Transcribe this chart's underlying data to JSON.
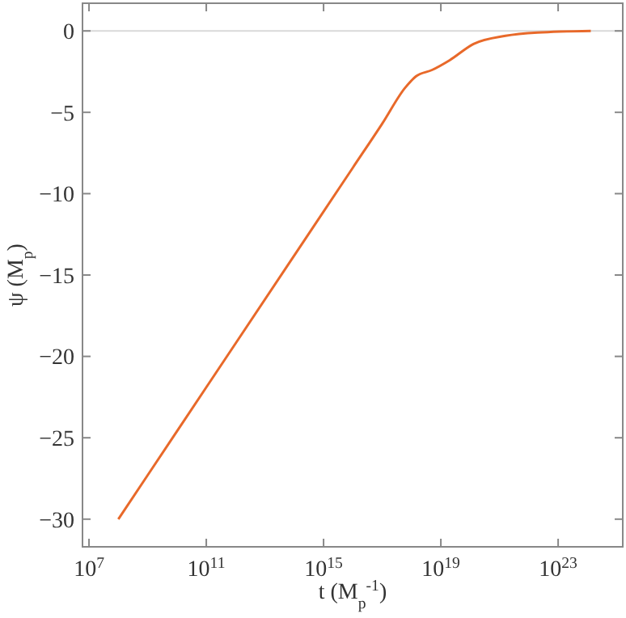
{
  "chart_data": {
    "type": "line",
    "xlabel": "t (M$_{p}$$^{-1}$)",
    "ylabel": "ψ (M$_{p}$)",
    "log": "x",
    "xlim": [
      6000000.0,
      1.6e+25
    ],
    "xticks": [
      {
        "value": 10000000.0,
        "label": "10$^{7}$"
      },
      {
        "value": 100000000000.0,
        "label": "10$^{11}$"
      },
      {
        "value": 1000000000000000.0,
        "label": "10$^{15}$"
      },
      {
        "value": 1e+19,
        "label": "10$^{19}$"
      },
      {
        "value": 1e+23,
        "label": "10$^{23}$"
      }
    ],
    "ylim": [
      -31.7,
      1.7
    ],
    "yticks": [
      0,
      -5,
      -10,
      -15,
      -20,
      -25,
      -30
    ],
    "grid": false,
    "ref_lines": [
      {
        "axis": "y",
        "value": 0,
        "color": "#d9d9d9"
      }
    ],
    "series": [
      {
        "color": "#e8692a",
        "x": [
          100000000.0,
          10000000000.0,
          1000000000000.0,
          100000000000000.0,
          1e+16,
          1e+17,
          6e+17,
          1.4e+18,
          5e+18,
          2e+19,
          1.3e+20,
          1.6e+21,
          2e+22,
          1.3e+24
        ],
        "values": [
          -30,
          -24.6,
          -19.2,
          -13.8,
          -8.4,
          -5.7,
          -3.5,
          -2.8,
          -2.4,
          -1.8,
          -0.8,
          -0.3,
          -0.1,
          0
        ]
      }
    ]
  }
}
